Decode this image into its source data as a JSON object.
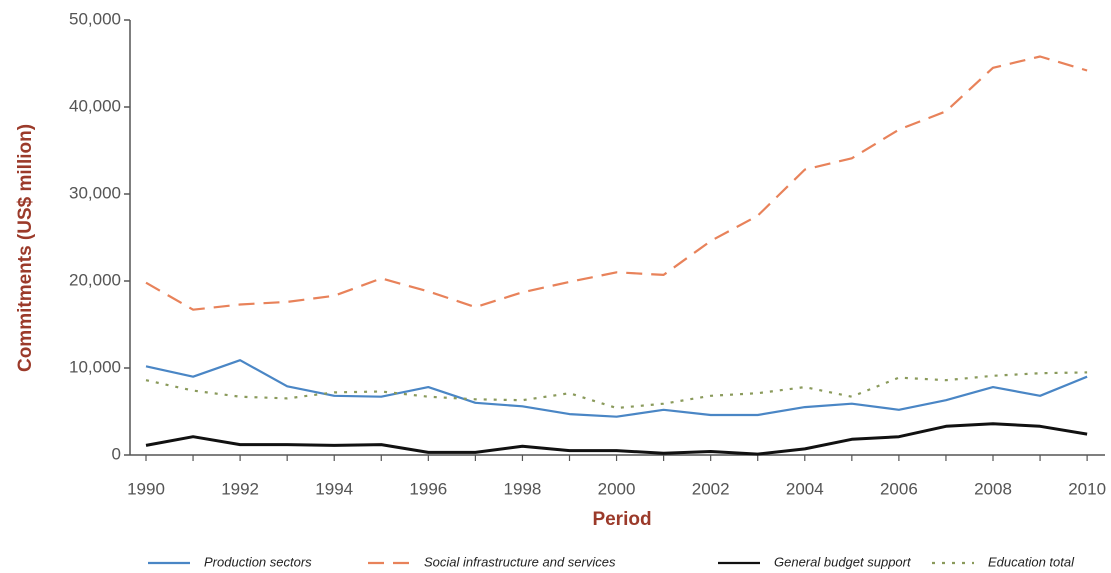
{
  "chart_data": {
    "type": "line",
    "y_label": "Commitments (US$ million)",
    "x_label": "Period",
    "x": [
      1990,
      1991,
      1992,
      1993,
      1994,
      1995,
      1996,
      1997,
      1998,
      1999,
      2000,
      2001,
      2002,
      2003,
      2004,
      2005,
      2006,
      2007,
      2008,
      2009,
      2010
    ],
    "series": [
      {
        "name": "Production sectors",
        "color": "#4a86c5",
        "style": "solid",
        "values": [
          10200,
          9000,
          10900,
          7900,
          6800,
          6700,
          7800,
          6000,
          5600,
          4700,
          4400,
          5200,
          4600,
          4600,
          5500,
          5900,
          5200,
          6300,
          7800,
          6800,
          9000
        ]
      },
      {
        "name": "Social infrastructure and services",
        "color": "#e8825a",
        "style": "dashed",
        "values": [
          19800,
          16700,
          17300,
          17600,
          18300,
          20300,
          18800,
          17000,
          18700,
          19900,
          21000,
          20700,
          24600,
          27500,
          32800,
          34100,
          37400,
          39500,
          44500,
          45800,
          44200
        ]
      },
      {
        "name": "General budget support",
        "color": "#111111",
        "style": "solid",
        "values": [
          1100,
          2100,
          1200,
          1200,
          1100,
          1200,
          300,
          300,
          1000,
          500,
          500,
          200,
          400,
          100,
          700,
          1800,
          2100,
          3300,
          3600,
          3300,
          2400
        ]
      },
      {
        "name": "Education total",
        "color": "#8a9a5b",
        "style": "dotted",
        "values": [
          8600,
          7400,
          6700,
          6500,
          7200,
          7300,
          6700,
          6400,
          6300,
          7100,
          5400,
          5900,
          6800,
          7100,
          7800,
          6700,
          8900,
          8600,
          9100,
          9400,
          9500
        ]
      }
    ],
    "xlim": [
      1989.66,
      2010.38
    ],
    "xticks": [
      1990,
      1992,
      1994,
      1996,
      1998,
      2000,
      2002,
      2004,
      2006,
      2008,
      2010
    ],
    "ylim": [
      0,
      50000
    ],
    "yticks": [
      0,
      {
        "value": 10000,
        "label": "10,000"
      },
      {
        "value": 20000,
        "label": "20,000"
      },
      {
        "value": 30000,
        "label": "30,000"
      },
      {
        "value": 40000,
        "label": "40,000"
      },
      {
        "value": 50000,
        "label": "50,000"
      }
    ],
    "grid": false,
    "legend": "bottom"
  }
}
